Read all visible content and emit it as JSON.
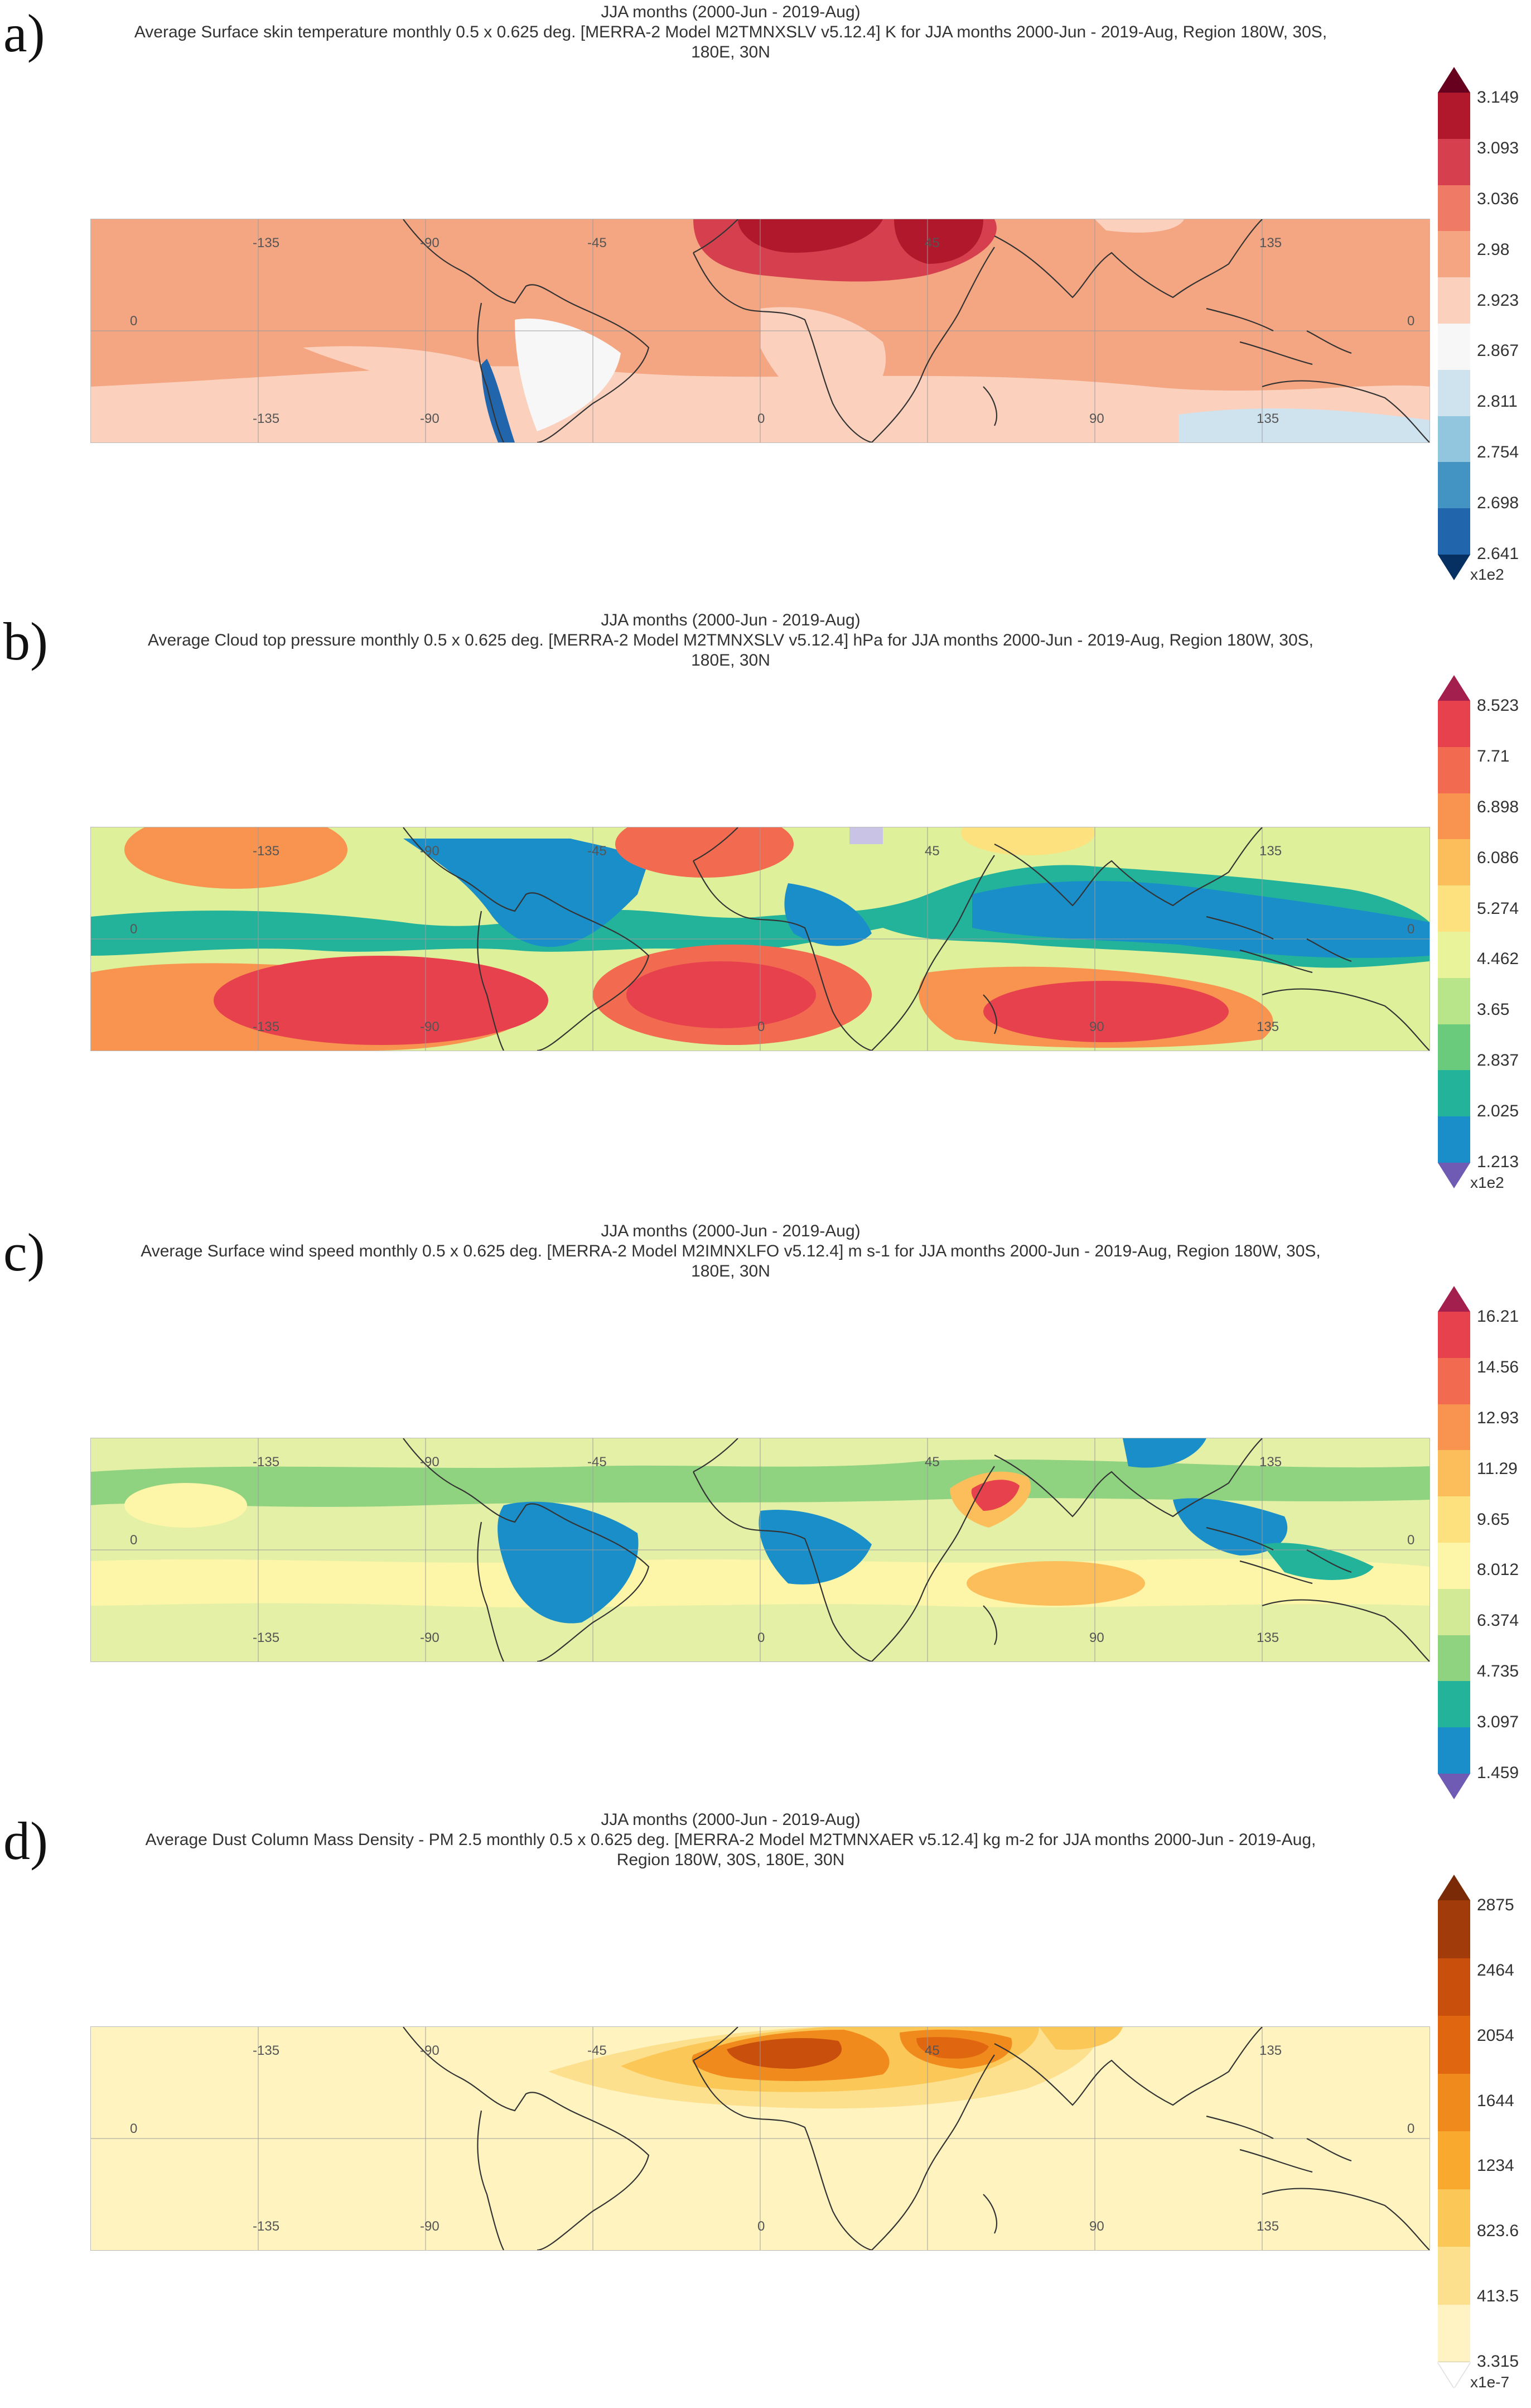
{
  "panels": [
    {
      "id": "a",
      "letter": "a)",
      "title_line1": "JJA months (2000-Jun - 2019-Aug)",
      "title_line2": "Average Surface skin temperature monthly 0.5 x 0.625 deg. [MERRA-2 Model M2TMNXSLV v5.12.4] K for JJA months 2000-Jun - 2019-Aug, Region 180W, 30S,",
      "title_line3": "180E, 30N",
      "colorbar": {
        "labels": [
          "3.149",
          "3.093",
          "3.036",
          "2.98",
          "2.923",
          "2.867",
          "2.811",
          "2.754",
          "2.698",
          "2.641"
        ],
        "exponent": "x1e2",
        "colors": [
          "#b2182b",
          "#d6404e",
          "#ef7b67",
          "#f6a582",
          "#fbd0bd",
          "#f7f7f7",
          "#cfe3ef",
          "#92c5de",
          "#4393c3",
          "#2166ac"
        ],
        "over_color": "#67001f",
        "under_color": "#053061",
        "base_color": "#f4a582"
      },
      "lon_ticks_top": [
        "-135",
        "-90",
        "-45",
        "45",
        "135"
      ],
      "lon_ticks_bottom": [
        "-135",
        "-90",
        "0",
        "90",
        "135"
      ],
      "lat_tick": "0"
    },
    {
      "id": "b",
      "letter": "b)",
      "title_line1": "JJA months (2000-Jun - 2019-Aug)",
      "title_line2": "Average Cloud top pressure monthly 0.5 x 0.625 deg. [MERRA-2 Model M2TMNXSLV v5.12.4] hPa for JJA months 2000-Jun - 2019-Aug, Region 180W, 30S,",
      "title_line3": "180E, 30N",
      "colorbar": {
        "labels": [
          "8.523",
          "7.71",
          "6.898",
          "6.086",
          "5.274",
          "4.462",
          "3.65",
          "2.837",
          "2.025",
          "1.213"
        ],
        "exponent": "x1e2",
        "colors": [
          "#e8414e",
          "#f26a4f",
          "#f8944f",
          "#fbbe5a",
          "#fde17e",
          "#e9f39a",
          "#b8e48a",
          "#6acb7c",
          "#22b39a",
          "#1a8ec9"
        ],
        "over_color": "#a3204e",
        "under_color": "#6f5bb3",
        "base_color": "#dff09a"
      },
      "lon_ticks_top": [
        "-135",
        "-90",
        "-45",
        "45",
        "135"
      ],
      "lon_ticks_bottom": [
        "-135",
        "-90",
        "0",
        "90",
        "135"
      ],
      "lat_tick": "0"
    },
    {
      "id": "c",
      "letter": "c)",
      "title_line1": "JJA months (2000-Jun - 2019-Aug)",
      "title_line2": "Average Surface wind speed monthly 0.5 x 0.625 deg. [MERRA-2 Model M2IMNXLFO v5.12.4] m s-1 for JJA months 2000-Jun - 2019-Aug, Region 180W, 30S,",
      "title_line3": "180E, 30N",
      "colorbar": {
        "labels": [
          "16.21",
          "14.56",
          "12.93",
          "11.29",
          "9.65",
          "8.012",
          "6.374",
          "4.735",
          "3.097",
          "1.459"
        ],
        "exponent": "",
        "colors": [
          "#e8414e",
          "#f26a4f",
          "#f8944f",
          "#fbbe5a",
          "#fde17e",
          "#fdf6a8",
          "#d2ea96",
          "#8fd381",
          "#22b39a",
          "#1a8ec9"
        ],
        "over_color": "#a3204e",
        "under_color": "#6f5bb3",
        "base_color": "#e4f0a6"
      },
      "lon_ticks_top": [
        "-135",
        "-90",
        "-45",
        "45",
        "135"
      ],
      "lon_ticks_bottom": [
        "-135",
        "-90",
        "0",
        "90",
        "135"
      ],
      "lat_tick": "0"
    },
    {
      "id": "d",
      "letter": "d)",
      "title_line1": "JJA months (2000-Jun - 2019-Aug)",
      "title_line2": "Average Dust Column Mass Density - PM 2.5 monthly 0.5 x 0.625 deg. [MERRA-2 Model M2TMNXAER v5.12.4] kg m-2 for JJA months 2000-Jun - 2019-Aug,",
      "title_line3": "Region 180W, 30S, 180E, 30N",
      "colorbar": {
        "labels": [
          "2875",
          "2464",
          "2054",
          "1644",
          "1234",
          "823.6",
          "413.5",
          "3.315"
        ],
        "exponent": "x1e-7",
        "colors": [
          "#a23b0a",
          "#c8500c",
          "#e0660f",
          "#f08a1c",
          "#f8a92e",
          "#fbc756",
          "#fde08e",
          "#fff3c4"
        ],
        "over_color": "#7a2a06",
        "under_color": "#ffffff",
        "base_color": "#fff3c0"
      },
      "lon_ticks_top": [
        "-135",
        "-90",
        "-45",
        "45",
        "135"
      ],
      "lon_ticks_bottom": [
        "-135",
        "-90",
        "0",
        "90",
        "135"
      ],
      "lat_tick": "0"
    }
  ]
}
